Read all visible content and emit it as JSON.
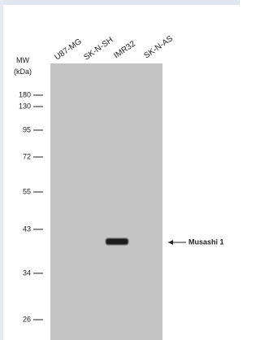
{
  "lanes": [
    "U87-MG",
    "SK-N-SH",
    "IMR32",
    "SK-N-AS"
  ],
  "mw_label": "MW",
  "mw_unit": "(kDa)",
  "markers": [
    "180",
    "130",
    "95",
    "72",
    "55",
    "43",
    "34",
    "26"
  ],
  "band_label": "Musashi 1"
}
